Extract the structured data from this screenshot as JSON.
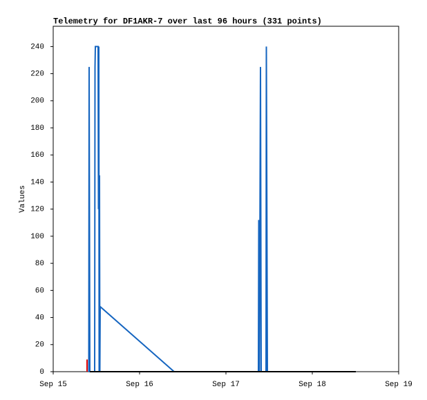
{
  "chart_data": {
    "type": "line",
    "title": "Telemetry for DF1AKR-7 over last 96 hours (331 points)",
    "ylabel": "Values",
    "xlim": [
      15,
      19
    ],
    "xticks": [
      {
        "value": 15,
        "label": "Sep 15"
      },
      {
        "value": 16,
        "label": "Sep 16"
      },
      {
        "value": 17,
        "label": "Sep 17"
      },
      {
        "value": 18,
        "label": "Sep 18"
      },
      {
        "value": 19,
        "label": "Sep 19"
      }
    ],
    "ylim": [
      0,
      255
    ],
    "yticks": [
      0,
      20,
      40,
      60,
      80,
      100,
      120,
      140,
      160,
      180,
      200,
      220,
      240
    ],
    "grid": false,
    "series": [
      {
        "color": "#1565c0",
        "width": 2,
        "x": [
          15.412,
          15.416,
          15.424,
          15.48,
          15.484,
          15.488,
          15.52,
          15.524,
          15.528,
          15.532,
          15.536,
          15.54,
          15.544,
          16.4,
          17.376,
          17.38,
          17.388,
          17.392,
          17.4,
          17.408,
          17.464,
          17.468,
          17.476,
          17.48,
          18.504
        ],
        "values": [
          0,
          225,
          0,
          0,
          225,
          240,
          240,
          120,
          240,
          0,
          145,
          0,
          48,
          0,
          0,
          112,
          0,
          80,
          225,
          0,
          0,
          240,
          80,
          0,
          0
        ]
      },
      {
        "color": "#e00000",
        "width": 2,
        "x": [
          15.392,
          15.392
        ],
        "values": [
          0,
          9
        ]
      },
      {
        "color": "#000000",
        "width": 2,
        "x": [
          15.424,
          18.504
        ],
        "values": [
          0,
          0
        ]
      }
    ]
  }
}
